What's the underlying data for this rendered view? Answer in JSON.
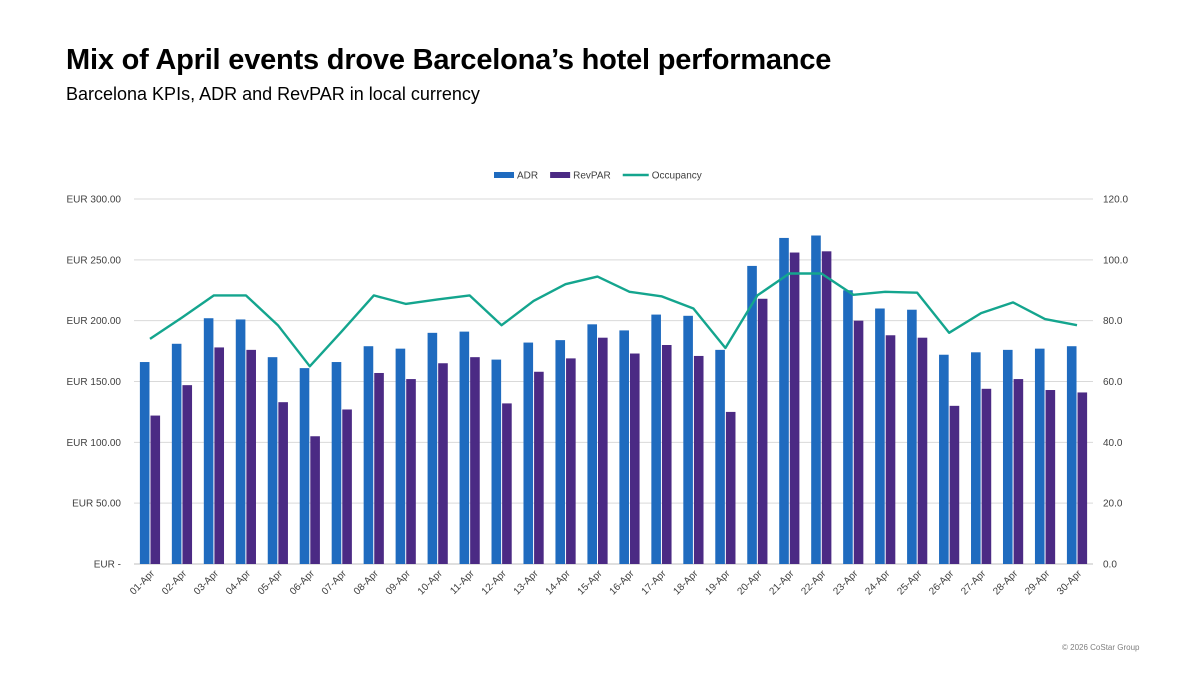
{
  "header": {
    "title": "Mix of April events drove Barcelona’s hotel performance",
    "subtitle": "Barcelona KPIs, ADR and RevPAR in local currency"
  },
  "footer": {
    "copyright": "© 2026 CoStar Group"
  },
  "chart_data": {
    "type": "bar",
    "categories": [
      "01-Apr",
      "02-Apr",
      "03-Apr",
      "04-Apr",
      "05-Apr",
      "06-Apr",
      "07-Apr",
      "08-Apr",
      "09-Apr",
      "10-Apr",
      "11-Apr",
      "12-Apr",
      "13-Apr",
      "14-Apr",
      "15-Apr",
      "16-Apr",
      "17-Apr",
      "18-Apr",
      "19-Apr",
      "20-Apr",
      "21-Apr",
      "22-Apr",
      "23-Apr",
      "24-Apr",
      "25-Apr",
      "26-Apr",
      "27-Apr",
      "28-Apr",
      "29-Apr",
      "30-Apr"
    ],
    "series": [
      {
        "name": "ADR",
        "type": "bar",
        "axis": "left",
        "color": "#1f6bbf",
        "values": [
          166,
          181,
          202,
          201,
          170,
          161,
          166,
          179,
          177,
          190,
          191,
          168,
          182,
          184,
          197,
          192,
          205,
          204,
          176,
          245,
          268,
          270,
          225,
          210,
          209,
          172,
          174,
          176,
          177,
          179
        ]
      },
      {
        "name": "RevPAR",
        "type": "bar",
        "axis": "left",
        "color": "#4b2a84",
        "values": [
          122,
          147,
          178,
          176,
          133,
          105,
          127,
          157,
          152,
          165,
          170,
          132,
          158,
          169,
          186,
          173,
          180,
          171,
          125,
          218,
          256,
          257,
          200,
          188,
          186,
          130,
          144,
          152,
          143,
          141
        ]
      },
      {
        "name": "Occupancy",
        "type": "line",
        "axis": "right",
        "color": "#14a58e",
        "values": [
          74,
          81,
          88.3,
          88.3,
          78.5,
          65,
          76.5,
          88.3,
          85.5,
          87,
          88.3,
          78.5,
          86.5,
          92,
          94.5,
          89.5,
          88,
          84,
          71,
          88.3,
          95.5,
          95.5,
          88.5,
          89.5,
          89.2,
          76,
          82.5,
          86,
          80.5,
          78.5
        ]
      }
    ],
    "y_left": {
      "ylim": [
        0,
        300
      ],
      "ticks": [
        0,
        50,
        100,
        150,
        200,
        250,
        300
      ],
      "tick_labels": [
        "EUR -",
        "EUR 50.00",
        "EUR 100.00",
        "EUR 150.00",
        "EUR 200.00",
        "EUR 250.00",
        "EUR 300.00"
      ]
    },
    "y_right": {
      "ylim": [
        0,
        120
      ],
      "ticks": [
        0,
        20,
        40,
        60,
        80,
        100,
        120
      ],
      "tick_labels": [
        "0.0",
        "20.0",
        "40.0",
        "60.0",
        "80.0",
        "100.0",
        "120.0"
      ]
    },
    "grid": true,
    "legend": "top-center"
  }
}
